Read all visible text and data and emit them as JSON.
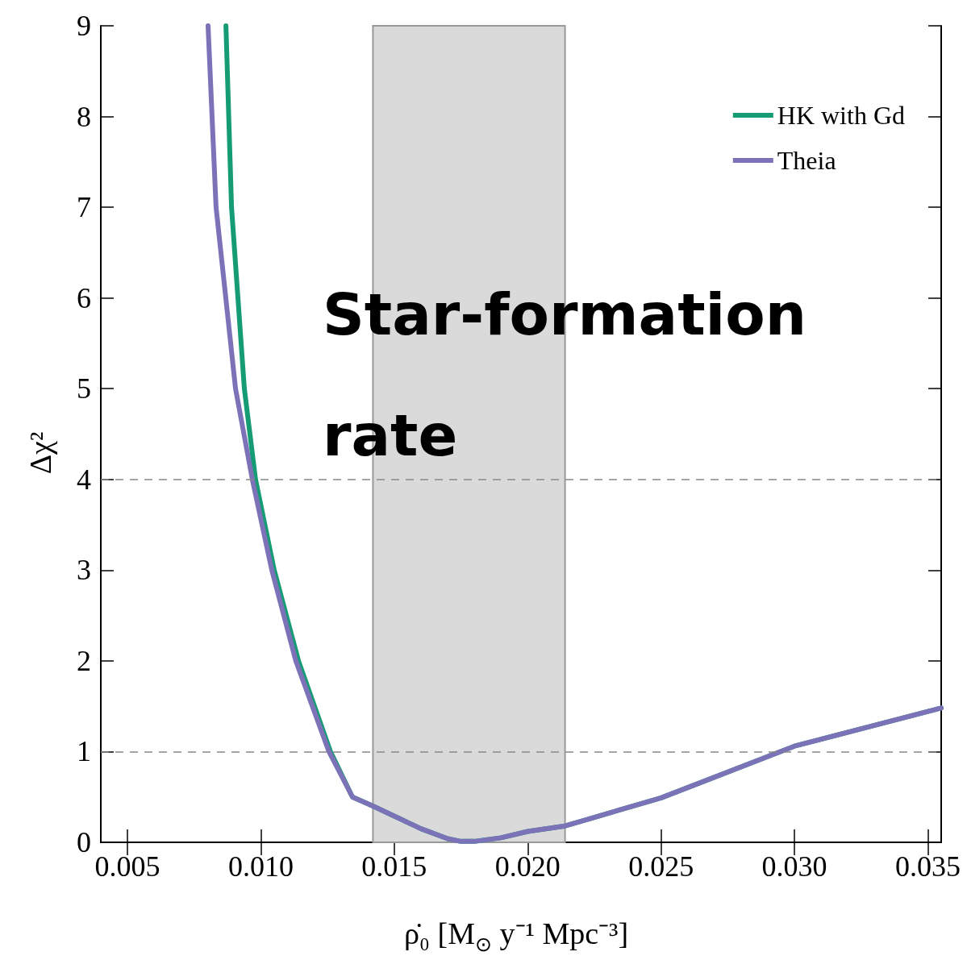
{
  "chart_data": {
    "type": "line",
    "xlabel": "ρ̇₀ [M$_{⊙}$ y⁻¹ Mpc⁻³]",
    "ylabel": "Δχ²",
    "annotations": [
      "Star-formation rate"
    ],
    "xlim": [
      0.004,
      0.0355
    ],
    "ylim": [
      0,
      9
    ],
    "xticks": [
      {
        "value": 0.005,
        "label": "0.005"
      },
      {
        "value": 0.01,
        "label": "0.010"
      },
      {
        "value": 0.015,
        "label": "0.015"
      },
      {
        "value": 0.02,
        "label": "0.020"
      },
      {
        "value": 0.025,
        "label": "0.025"
      },
      {
        "value": 0.03,
        "label": "0.030"
      },
      {
        "value": 0.035,
        "label": "0.035"
      }
    ],
    "yticks": [
      0,
      1,
      2,
      3,
      4,
      5,
      6,
      7,
      8,
      9
    ],
    "grid": false,
    "legend": "top right",
    "marker": "none",
    "line_style": "solid",
    "ref_lines": [
      {
        "axis": "y",
        "value": 1,
        "color": "#888888",
        "line_style": "dashed"
      },
      {
        "axis": "y",
        "value": 4,
        "color": "#888888",
        "line_style": "dashed"
      }
    ],
    "bands": [
      {
        "axis": "x",
        "from": 0.0142,
        "to": 0.0214,
        "color": "#dadada"
      }
    ],
    "series": [
      {
        "name": "HK with Gd",
        "color": "#169c74",
        "x": [
          0.00869,
          0.0089,
          0.00914,
          0.00938,
          0.0098,
          0.0105,
          0.01141,
          0.01261,
          0.01343,
          0.0142,
          0.016,
          0.017,
          0.0175,
          0.018,
          0.019,
          0.02,
          0.0214,
          0.025,
          0.03,
          0.0355
        ],
        "values": [
          9,
          7,
          6,
          5,
          4,
          3,
          2,
          1,
          0.5,
          0.4,
          0.15,
          0.04,
          0.01,
          0.01,
          0.05,
          0.12,
          0.18,
          0.49,
          1.06,
          1.48
        ]
      },
      {
        "name": "Theia",
        "color": "#7b72b8",
        "x": [
          0.00802,
          0.00832,
          0.00905,
          0.00968,
          0.01041,
          0.01131,
          0.01255,
          0.01343,
          0.0142,
          0.016,
          0.017,
          0.0175,
          0.018,
          0.019,
          0.02,
          0.0214,
          0.025,
          0.03,
          0.0355
        ],
        "values": [
          9,
          7,
          5,
          4,
          3,
          2,
          1,
          0.5,
          0.4,
          0.15,
          0.04,
          0.01,
          0.01,
          0.05,
          0.12,
          0.18,
          0.49,
          1.06,
          1.48
        ]
      }
    ]
  }
}
